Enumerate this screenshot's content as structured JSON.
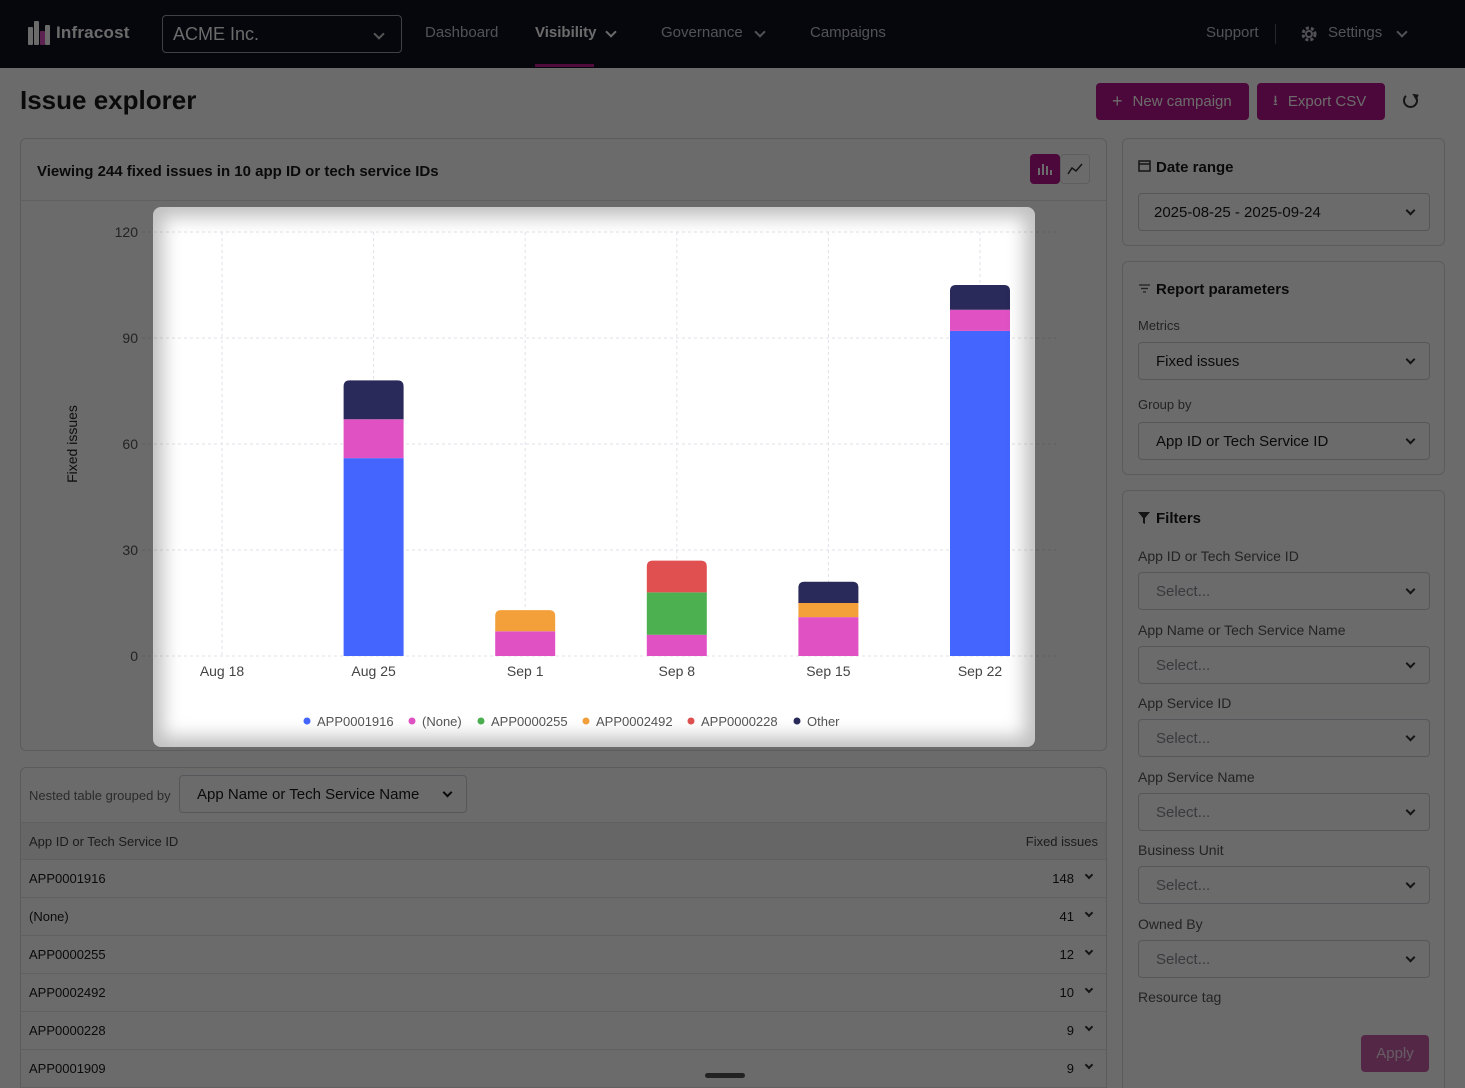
{
  "nav": {
    "brand": "Infracost",
    "org": "ACME Inc.",
    "links": [
      "Dashboard",
      "Visibility",
      "Governance",
      "Campaigns"
    ],
    "support": "Support",
    "settings": "Settings"
  },
  "header": {
    "title": "Issue explorer",
    "new_campaign": "New campaign",
    "export_csv": "Export CSV"
  },
  "chart_card": {
    "summary": "Viewing 244 fixed issues in 10 app ID or tech service IDs"
  },
  "chart_data": {
    "type": "bar",
    "stacked": true,
    "categories": [
      "Aug 18",
      "Aug 25",
      "Sep 1",
      "Sep 8",
      "Sep 15",
      "Sep 22"
    ],
    "ylabel": "Fixed issues",
    "ylim": [
      0,
      120
    ],
    "yticks": [
      0,
      30,
      60,
      90,
      120
    ],
    "grid": true,
    "legend_position": "bottom",
    "series": [
      {
        "name": "APP0001916",
        "color": "#4466ff",
        "values": [
          0,
          56,
          0,
          0,
          0,
          92
        ]
      },
      {
        "name": "(None)",
        "color": "#e052c4",
        "values": [
          0,
          11,
          7,
          6,
          11,
          6
        ]
      },
      {
        "name": "APP0000255",
        "color": "#4caf50",
        "values": [
          0,
          0,
          0,
          12,
          0,
          0
        ]
      },
      {
        "name": "APP0002492",
        "color": "#f4a03a",
        "values": [
          0,
          0,
          6,
          0,
          4,
          0
        ]
      },
      {
        "name": "APP0000228",
        "color": "#e05050",
        "values": [
          0,
          0,
          0,
          9,
          0,
          0
        ]
      },
      {
        "name": "Other",
        "color": "#2a2a5a",
        "values": [
          0,
          11,
          0,
          0,
          6,
          7
        ]
      }
    ]
  },
  "date_range": {
    "title": "Date range",
    "value": "2025-08-25 - 2025-09-24"
  },
  "report_params": {
    "title": "Report parameters",
    "metrics_label": "Metrics",
    "metrics_value": "Fixed issues",
    "group_label": "Group by",
    "group_value": "App ID or Tech Service ID"
  },
  "filters": {
    "title": "Filters",
    "placeholder": "Select...",
    "fields": [
      "App ID or Tech Service ID",
      "App Name or Tech Service Name",
      "App Service ID",
      "App Service Name",
      "Business Unit",
      "Owned By",
      "Resource tag"
    ],
    "apply": "Apply"
  },
  "table": {
    "nested_label": "Nested table grouped by",
    "nested_value": "App Name or Tech Service Name",
    "col1": "App ID or Tech Service ID",
    "col2": "Fixed issues",
    "rows": [
      {
        "id": "APP0001916",
        "count": "148"
      },
      {
        "id": "(None)",
        "count": "41"
      },
      {
        "id": "APP0000255",
        "count": "12"
      },
      {
        "id": "APP0002492",
        "count": "10"
      },
      {
        "id": "APP0000228",
        "count": "9"
      },
      {
        "id": "APP0001909",
        "count": "9"
      }
    ]
  }
}
